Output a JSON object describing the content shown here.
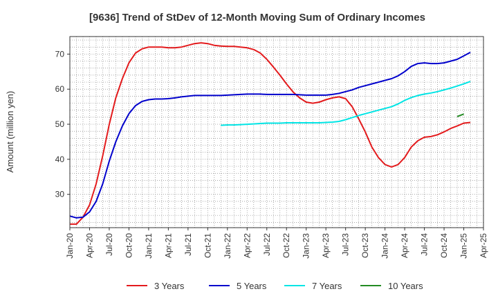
{
  "chart_data": {
    "type": "line",
    "title": "[9636]  Trend of StDev of 12-Month Moving Sum of Ordinary Incomes",
    "xlabel": "",
    "ylabel": "Amount (million yen)",
    "x_start": "2020-01",
    "x_end": "2025-04",
    "ylim": [
      20.5,
      75
    ],
    "y_ticks": [
      30,
      40,
      50,
      60,
      70
    ],
    "x_ticks": [
      "Jan-20",
      "Apr-20",
      "Jul-20",
      "Oct-20",
      "Jan-21",
      "Apr-21",
      "Jul-21",
      "Oct-21",
      "Jan-22",
      "Apr-22",
      "Jul-22",
      "Oct-22",
      "Jan-23",
      "Apr-23",
      "Jul-23",
      "Oct-23",
      "Jan-24",
      "Apr-24",
      "Jul-24",
      "Oct-24",
      "Jan-25",
      "Apr-25"
    ],
    "grid": true,
    "legend_position": "bottom",
    "series": [
      {
        "name": "3 Years",
        "color": "#e31a1c",
        "start": "2020-01",
        "values": [
          21.5,
          21.5,
          23.5,
          27.0,
          33.0,
          41.0,
          50.0,
          57.5,
          63.0,
          67.5,
          70.3,
          71.5,
          72.0,
          72.0,
          72.0,
          71.8,
          71.8,
          72.0,
          72.5,
          73.0,
          73.2,
          73.0,
          72.5,
          72.3,
          72.2,
          72.2,
          72.0,
          71.8,
          71.3,
          70.3,
          68.5,
          66.3,
          64.0,
          61.5,
          59.2,
          57.5,
          56.3,
          56.0,
          56.3,
          57.0,
          57.5,
          57.8,
          57.3,
          55.0,
          51.5,
          47.8,
          43.5,
          40.5,
          38.5,
          37.8,
          38.5,
          40.5,
          43.5,
          45.3,
          46.3,
          46.5,
          47.0,
          47.8,
          48.8,
          49.5,
          50.3,
          50.5
        ]
      },
      {
        "name": "5 Years",
        "color": "#0000cc",
        "start": "2020-01",
        "values": [
          23.8,
          23.3,
          23.5,
          25.0,
          28.0,
          33.0,
          39.5,
          45.0,
          49.5,
          53.0,
          55.3,
          56.5,
          57.0,
          57.2,
          57.2,
          57.3,
          57.5,
          57.8,
          58.0,
          58.2,
          58.2,
          58.2,
          58.2,
          58.2,
          58.3,
          58.4,
          58.5,
          58.6,
          58.6,
          58.6,
          58.5,
          58.5,
          58.5,
          58.5,
          58.5,
          58.4,
          58.3,
          58.3,
          58.3,
          58.3,
          58.5,
          58.8,
          59.3,
          59.8,
          60.5,
          61.0,
          61.5,
          62.0,
          62.5,
          63.0,
          63.8,
          65.0,
          66.5,
          67.3,
          67.5,
          67.3,
          67.3,
          67.5,
          68.0,
          68.5,
          69.5,
          70.5
        ]
      },
      {
        "name": "7 Years",
        "color": "#00e5e5",
        "start": "2021-12",
        "values": [
          49.7,
          49.8,
          49.8,
          49.9,
          50.0,
          50.1,
          50.2,
          50.3,
          50.3,
          50.3,
          50.4,
          50.4,
          50.4,
          50.4,
          50.4,
          50.4,
          50.5,
          50.6,
          50.8,
          51.3,
          51.9,
          52.5,
          53.0,
          53.5,
          54.0,
          54.5,
          55.0,
          55.8,
          56.8,
          57.6,
          58.2,
          58.6,
          58.9,
          59.3,
          59.8,
          60.3,
          60.9,
          61.5,
          62.2
        ]
      },
      {
        "name": "10 Years",
        "color": "#228b22",
        "start": "2024-12",
        "values": [
          52.2,
          52.9
        ]
      }
    ]
  }
}
